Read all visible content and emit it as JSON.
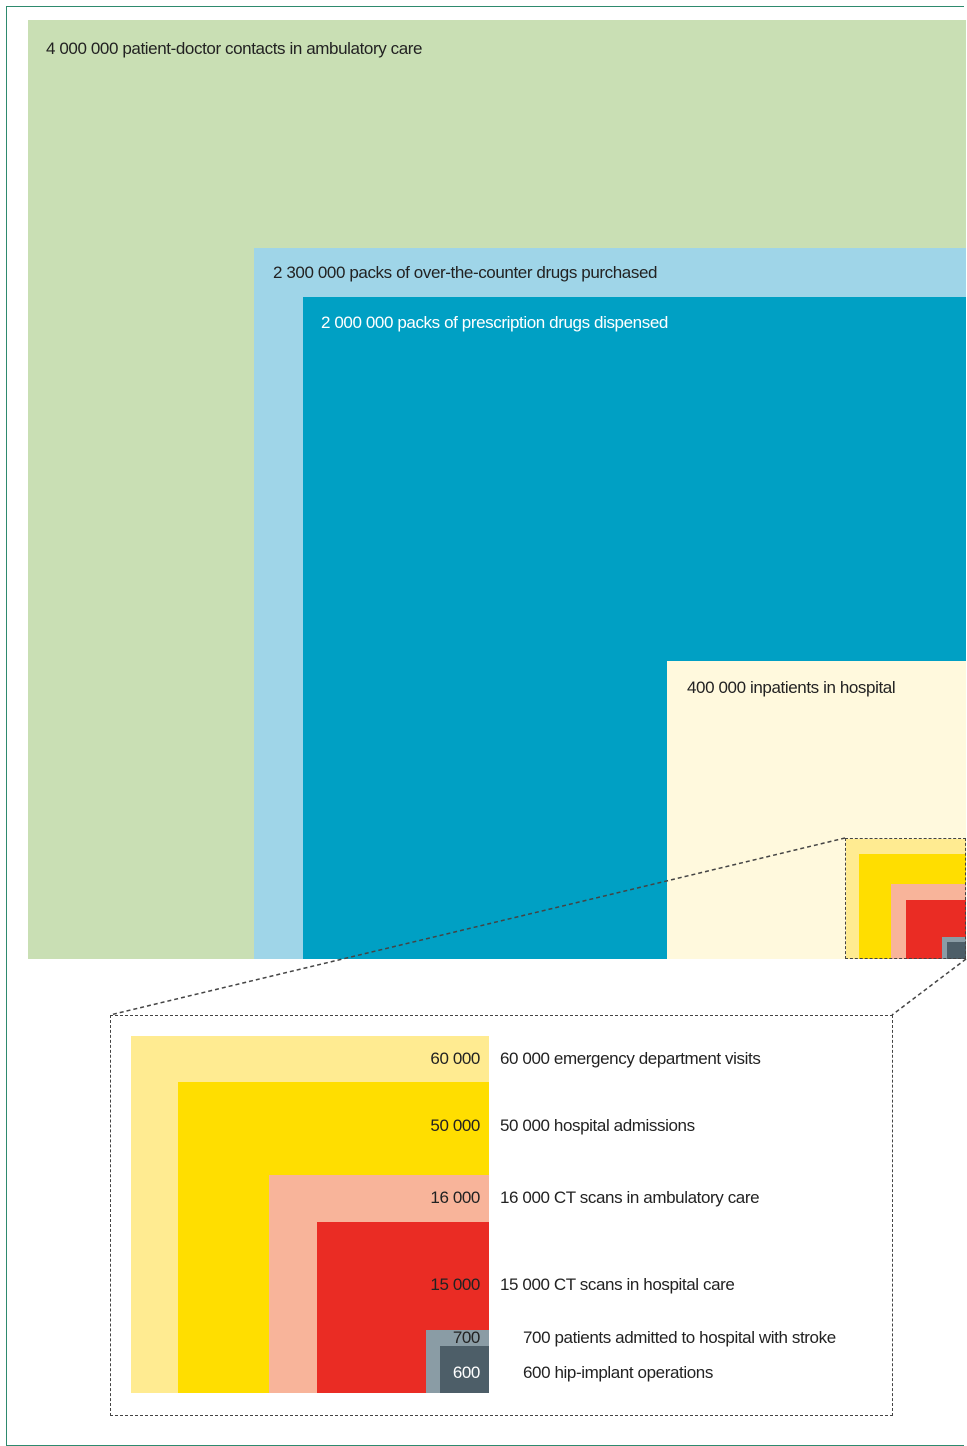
{
  "colors": {
    "ambulatory": "#c9dfb4",
    "otc": "#9fd5e8",
    "prescription": "#00a0c4",
    "inpatients": "#fff9dd",
    "emergency": "#ffeb91",
    "admissions": "#ffde00",
    "ct_ambulatory": "#f8b49a",
    "ct_hospital": "#ea2c24",
    "stroke": "#8a9ca5",
    "hip": "#4d5e68",
    "frame": "#2e8a6e"
  },
  "main": {
    "ambulatory": "4 000 000 patient-doctor contacts in ambulatory care",
    "otc": "2 300 000 packs of over-the-counter drugs purchased",
    "prescription": "2 000 000 packs of prescription drugs dispensed",
    "inpatients": "400 000 inpatients in hospital"
  },
  "inset": {
    "items": [
      {
        "value": "60 000",
        "label": "60 000 emergency department visits"
      },
      {
        "value": "50 000",
        "label": "50 000 hospital admissions"
      },
      {
        "value": "16 000",
        "label": "16 000 CT scans in ambulatory care"
      },
      {
        "value": "15 000",
        "label": "15 000 CT scans in hospital care"
      },
      {
        "value": "700",
        "label": "700 patients admitted to hospital with stroke"
      },
      {
        "value": "600",
        "label": "600 hip-implant operations"
      }
    ]
  }
}
